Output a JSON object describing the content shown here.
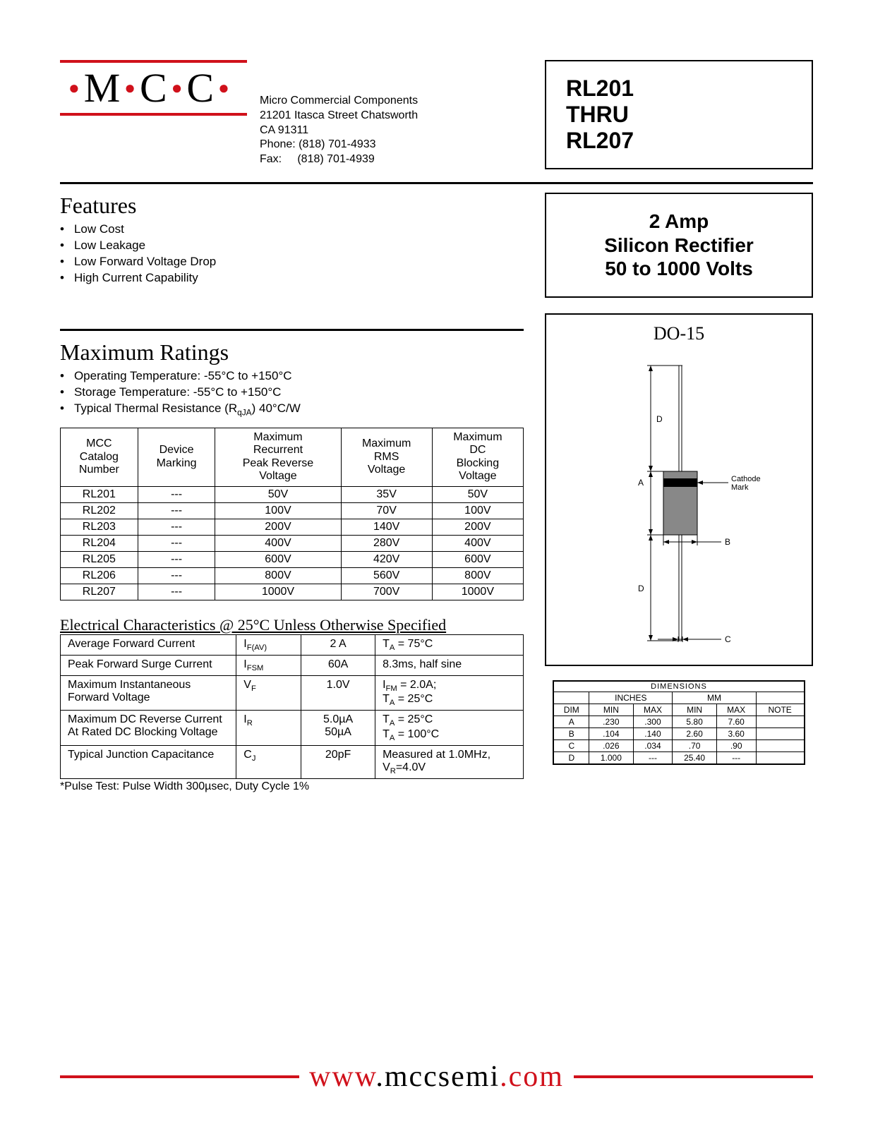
{
  "logo": "M·C·C·",
  "company": {
    "name": "Micro Commercial Components",
    "addr1": "21201 Itasca Street Chatsworth",
    "addr2": "CA 91311",
    "phone": "Phone: (818) 701-4933",
    "fax": "Fax:     (818) 701-4939"
  },
  "part": {
    "l1": "RL201",
    "l2": "THRU",
    "l3": "RL207"
  },
  "spec": {
    "l1": "2 Amp",
    "l2": "Silicon Rectifier",
    "l3": "50 to 1000 Volts"
  },
  "features": {
    "title": "Features",
    "items": [
      "Low Cost",
      "Low Leakage",
      "Low Forward Voltage Drop",
      "High Current Capability"
    ]
  },
  "ratings": {
    "title": "Maximum Ratings",
    "bullets": [
      "Operating Temperature: -55°C to +150°C",
      "Storage Temperature: -55°C to +150°C",
      "Typical Thermal Resistance (RqJA) 40°C/W"
    ],
    "headers": [
      "MCC\nCatalog\nNumber",
      "Device\nMarking",
      "Maximum\nRecurrent\nPeak Reverse\nVoltage",
      "Maximum\nRMS\nVoltage",
      "Maximum\nDC\nBlocking\nVoltage"
    ],
    "rows": [
      [
        "RL201",
        "---",
        "50V",
        "35V",
        "50V"
      ],
      [
        "RL202",
        "---",
        "100V",
        "70V",
        "100V"
      ],
      [
        "RL203",
        "---",
        "200V",
        "140V",
        "200V"
      ],
      [
        "RL204",
        "---",
        "400V",
        "280V",
        "400V"
      ],
      [
        "RL205",
        "---",
        "600V",
        "420V",
        "600V"
      ],
      [
        "RL206",
        "---",
        "800V",
        "560V",
        "800V"
      ],
      [
        "RL207",
        "---",
        "1000V",
        "700V",
        "1000V"
      ]
    ]
  },
  "elec": {
    "title": "Electrical Characteristics @ 25°C Unless Otherwise Specified",
    "rows": [
      [
        "Average Forward Current",
        "I<sub>F(AV)</sub>",
        "2 A",
        "T<sub>A</sub> = 75°C"
      ],
      [
        "Peak Forward Surge Current",
        "I<sub>FSM</sub>",
        "60A",
        "8.3ms, half sine"
      ],
      [
        "Maximum Instantaneous Forward Voltage",
        "V<sub>F</sub>",
        "1.0V",
        "I<sub>FM</sub> = 2.0A;<br>T<sub>A</sub> = 25°C"
      ],
      [
        "Maximum DC Reverse Current At Rated DC Blocking Voltage",
        "I<sub>R</sub>",
        "5.0µA<br>50µA",
        "T<sub>A</sub> = 25°C<br>T<sub>A</sub> = 100°C"
      ],
      [
        "Typical Junction Capacitance",
        "C<sub>J</sub>",
        "20pF",
        "Measured at 1.0MHz, V<sub>R</sub>=4.0V"
      ]
    ],
    "footnote": "*Pulse Test: Pulse Width 300µsec, Duty Cycle 1%"
  },
  "pkg": {
    "title": "DO-15",
    "cathode": "Cathode\nMark",
    "dim_title": "DIMENSIONS",
    "col_groups": [
      "INCHES",
      "MM"
    ],
    "cols": [
      "DIM",
      "MIN",
      "MAX",
      "MIN",
      "MAX",
      "NOTE"
    ],
    "rows": [
      [
        "A",
        ".230",
        ".300",
        "5.80",
        "7.60",
        ""
      ],
      [
        "B",
        ".104",
        ".140",
        "2.60",
        "3.60",
        ""
      ],
      [
        "C",
        ".026",
        ".034",
        ".70",
        ".90",
        ""
      ],
      [
        "D",
        "1.000",
        "---",
        "25.40",
        "---",
        ""
      ]
    ]
  },
  "footer": {
    "labels": {
      "D": "D",
      "A": "A",
      "B": "B",
      "C": "C"
    },
    "url_parts": [
      "www",
      ".",
      "mccsemi",
      ".",
      "com"
    ]
  },
  "style": {
    "red": "#d0111b"
  }
}
